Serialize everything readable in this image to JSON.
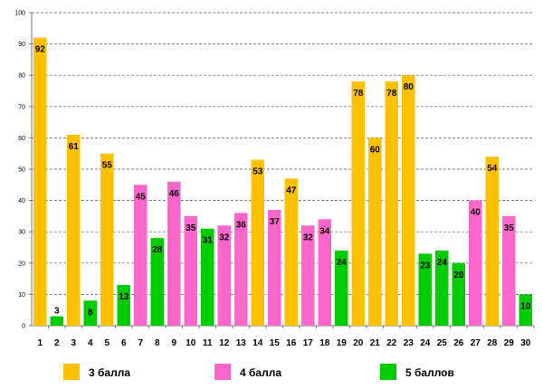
{
  "chart_data": {
    "type": "bar",
    "title": "",
    "xlabel": "",
    "ylabel": "",
    "ylim": [
      0,
      100
    ],
    "yticks": [
      0,
      10,
      20,
      30,
      40,
      50,
      60,
      70,
      80,
      90,
      100
    ],
    "grid": true,
    "categories": [
      "1",
      "2",
      "3",
      "4",
      "5",
      "6",
      "7",
      "8",
      "9",
      "10",
      "11",
      "12",
      "13",
      "14",
      "15",
      "16",
      "17",
      "18",
      "19",
      "20",
      "21",
      "22",
      "23",
      "24",
      "25",
      "26",
      "27",
      "28",
      "29",
      "30"
    ],
    "values": [
      92,
      3,
      61,
      8,
      55,
      13,
      45,
      28,
      46,
      35,
      31,
      32,
      36,
      53,
      37,
      47,
      32,
      34,
      24,
      78,
      60,
      78,
      80,
      23,
      24,
      20,
      40,
      54,
      35,
      10
    ],
    "groups": [
      "3",
      "5",
      "3",
      "5",
      "3",
      "5",
      "4",
      "5",
      "4",
      "4",
      "5",
      "4",
      "4",
      "3",
      "4",
      "3",
      "4",
      "4",
      "5",
      "3",
      "3",
      "3",
      "3",
      "5",
      "5",
      "5",
      "4",
      "3",
      "4",
      "5"
    ],
    "legend": [
      {
        "key": "3",
        "label": "3 балла",
        "color": "#FFC000"
      },
      {
        "key": "4",
        "label": "4 балла",
        "color": "#FF66CC"
      },
      {
        "key": "5",
        "label": "5 баллов",
        "color": "#00CC00"
      }
    ],
    "legend_position": "bottom"
  }
}
